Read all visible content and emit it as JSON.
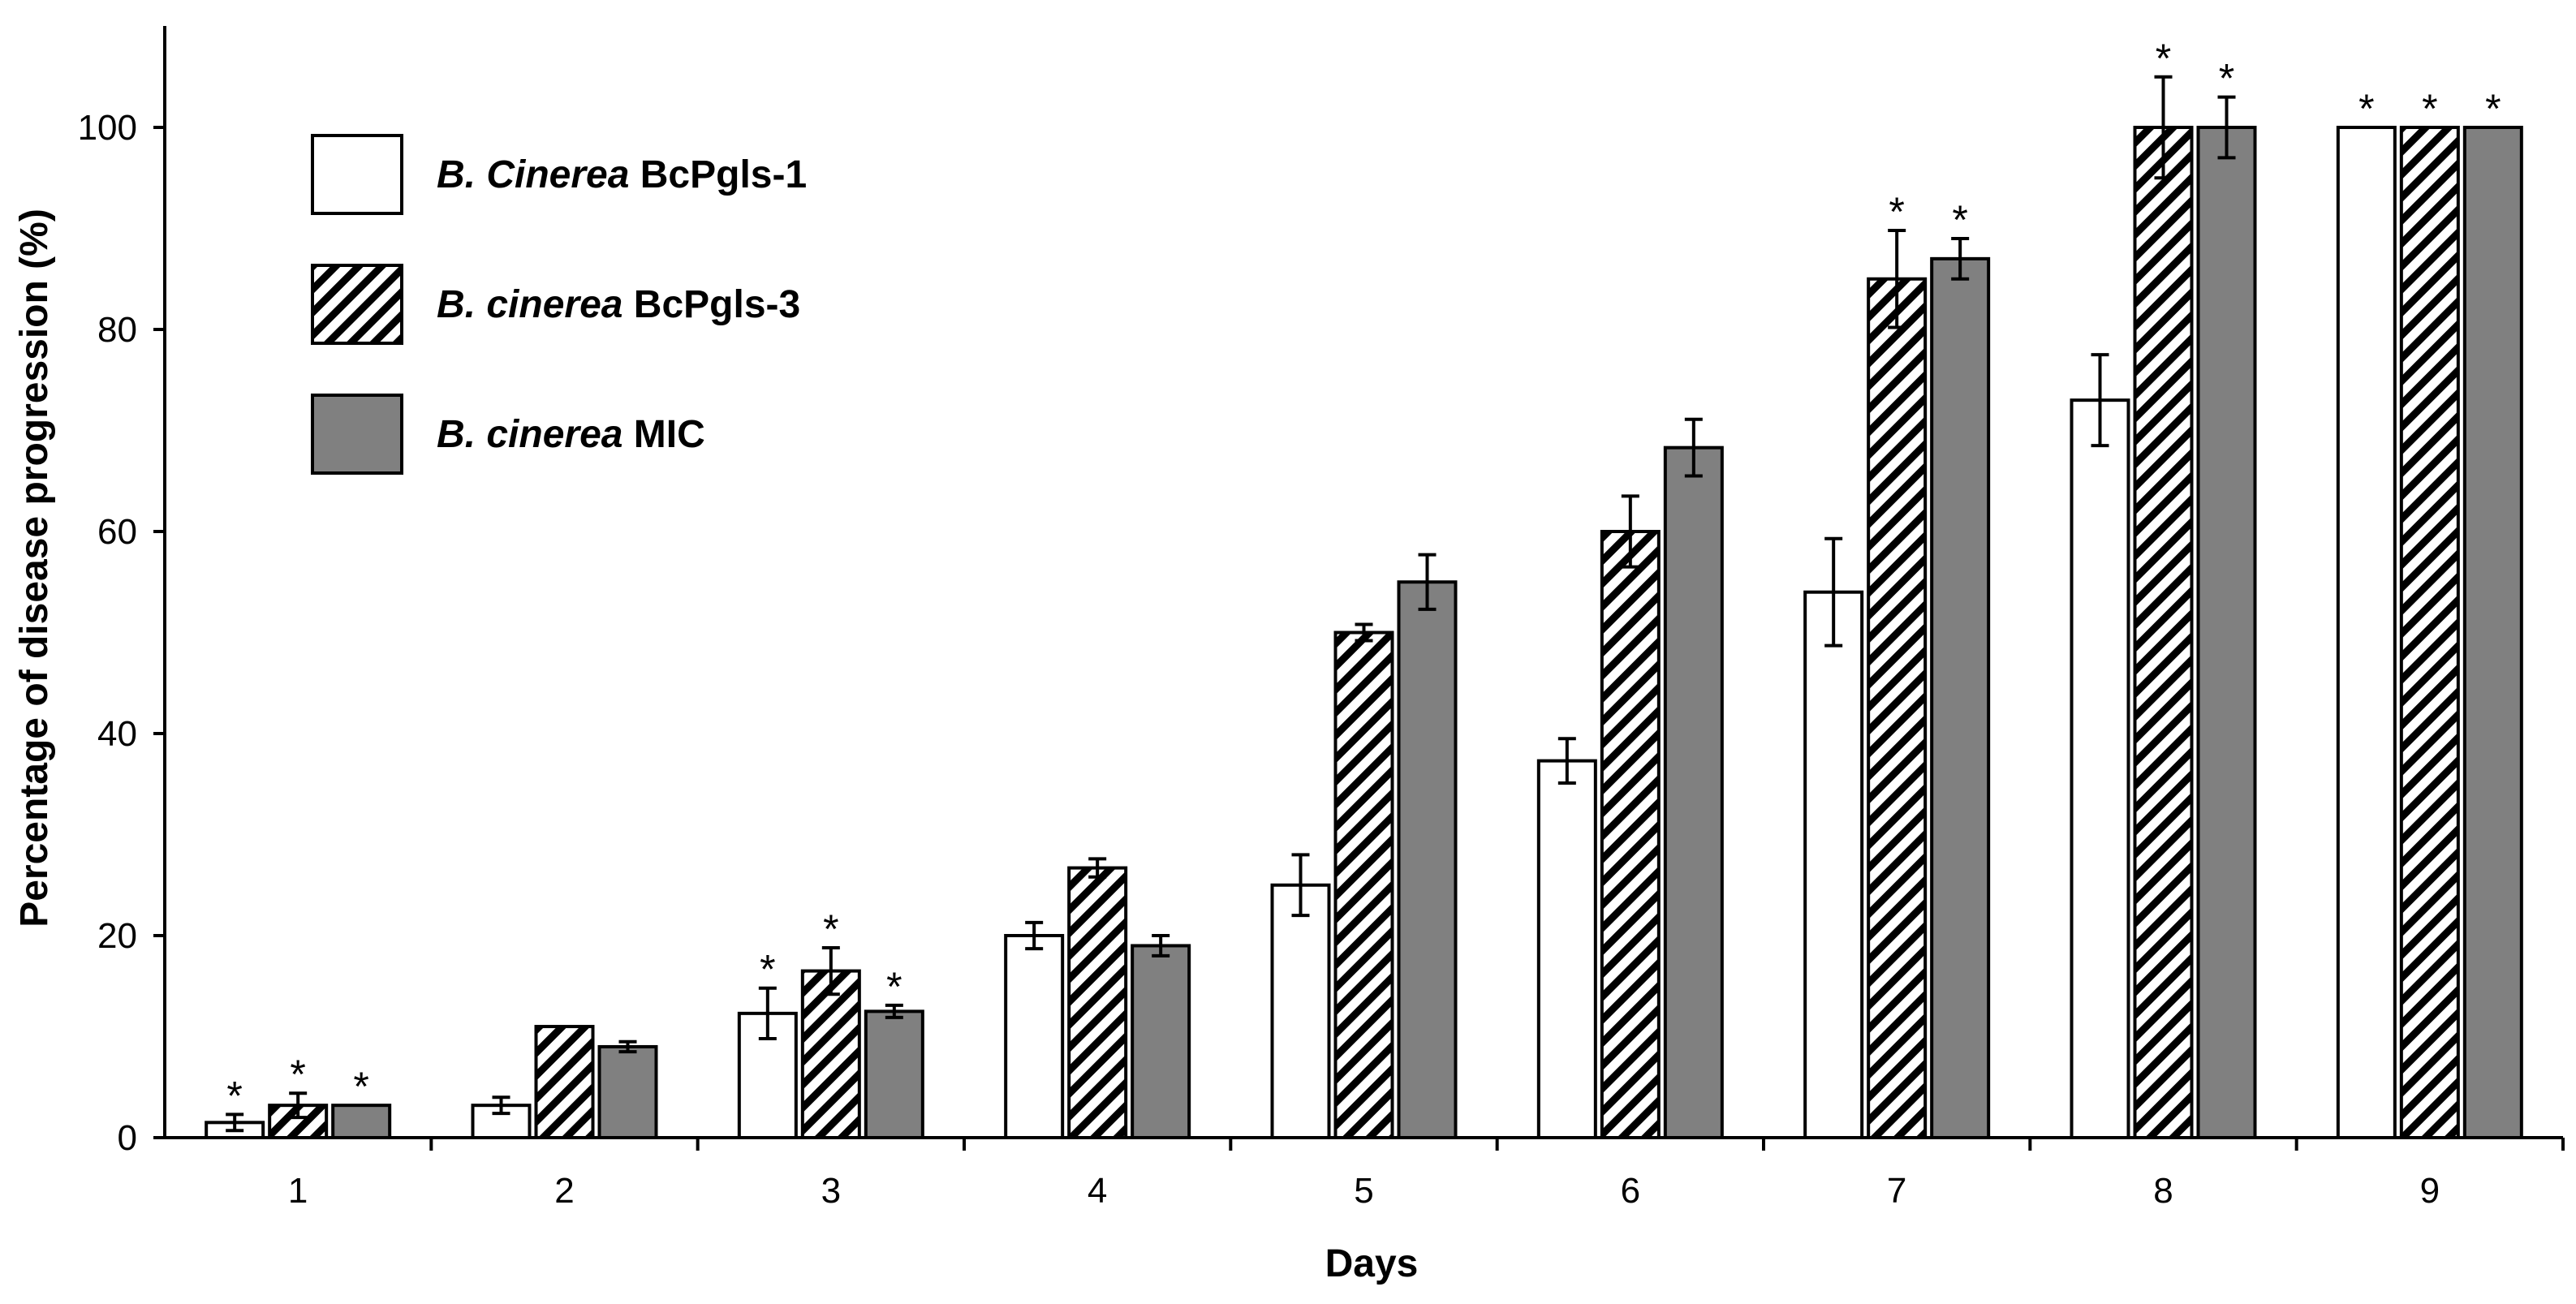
{
  "chart_data": {
    "type": "bar",
    "title": "",
    "xlabel": "Days",
    "ylabel": "Percentage of disease progression (%)",
    "ylim": [
      0,
      110
    ],
    "yticks": [
      "0",
      "20",
      "40",
      "60",
      "80",
      "100"
    ],
    "categories": [
      "1",
      "2",
      "3",
      "4",
      "5",
      "6",
      "7",
      "8",
      "9"
    ],
    "legend_position": "top-left",
    "series": [
      {
        "name": "B. Cinerea BcPgls-1",
        "name_italic": "B. Cinerea",
        "name_rest": " BcPgls-1",
        "fill": "#ffffff",
        "pattern": "solid",
        "values": [
          1.5,
          3.2,
          12.3,
          20,
          25,
          37.3,
          54,
          73,
          100
        ],
        "errors": [
          0.8,
          0.8,
          2.5,
          1.3,
          3,
          2.2,
          5.3,
          4.5,
          0
        ],
        "significant": [
          true,
          false,
          true,
          false,
          false,
          false,
          false,
          false,
          true
        ]
      },
      {
        "name": "B. cinerea BcPgls-3",
        "name_italic": "B. cinerea",
        "name_rest": "  BcPgls-3",
        "fill": "#ffffff",
        "pattern": "hatched",
        "values": [
          3.2,
          11,
          16.5,
          26.7,
          50,
          60,
          85,
          100,
          100
        ],
        "errors": [
          1.2,
          0,
          2.3,
          0.9,
          0.8,
          3.5,
          4.8,
          5,
          0
        ],
        "significant": [
          true,
          false,
          true,
          false,
          false,
          false,
          true,
          true,
          true
        ]
      },
      {
        "name": "B. cinerea MIC",
        "name_italic": "B. cinerea",
        "name_rest": " MIC",
        "fill": "#808080",
        "pattern": "solid",
        "values": [
          3.2,
          9,
          12.5,
          19,
          55,
          68.3,
          87,
          100,
          100
        ],
        "errors": [
          0,
          0.5,
          0.6,
          1,
          2.7,
          2.8,
          2,
          3,
          0
        ],
        "significant": [
          true,
          false,
          true,
          false,
          false,
          false,
          true,
          true,
          true
        ]
      }
    ],
    "significance_marker": "*"
  },
  "colors": {
    "axis": "#000000",
    "bar_outline": "#000000",
    "gray": "#808080"
  }
}
